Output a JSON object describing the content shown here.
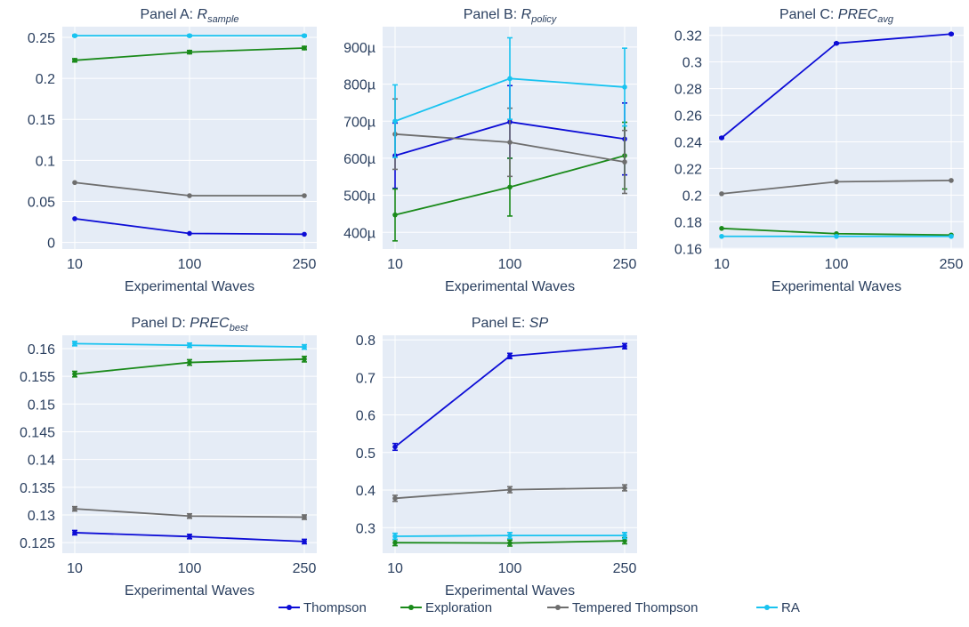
{
  "colors": {
    "plot_bg": "#e5ecf6",
    "grid": "#ffffff",
    "text": "#2a3f5f"
  },
  "legend": {
    "placement": "bottom-center",
    "items": [
      {
        "name": "Thompson",
        "color": "#0d0dd6"
      },
      {
        "name": "Exploration",
        "color": "#1a8a1a"
      },
      {
        "name": "Tempered Thompson",
        "color": "#6e6e6e"
      },
      {
        "name": "RA",
        "color": "#19c3f0"
      }
    ]
  },
  "chart_data": [
    {
      "id": "A",
      "type": "line",
      "title_prefix": "Panel A: ",
      "title_main": "R",
      "title_sub": "sample",
      "xlabel": "Experimental Waves",
      "categories": [
        "10",
        "100",
        "250"
      ],
      "ylim": [
        -0.008,
        0.263
      ],
      "yticks": [
        0,
        0.05,
        0.1,
        0.15,
        0.2,
        0.25
      ],
      "yticklabels": [
        "0",
        "0.05",
        "0.1",
        "0.15",
        "0.2",
        "0.25"
      ],
      "grid": true,
      "series": [
        {
          "name": "Thompson",
          "values": [
            0.029,
            0.011,
            0.01
          ],
          "err": [
            0,
            0,
            0
          ]
        },
        {
          "name": "Exploration",
          "values": [
            0.222,
            0.232,
            0.237
          ],
          "err": [
            0.002,
            0.002,
            0.002
          ]
        },
        {
          "name": "Tempered Thompson",
          "values": [
            0.073,
            0.057,
            0.057
          ],
          "err": [
            0,
            0,
            0
          ]
        },
        {
          "name": "RA",
          "values": [
            0.252,
            0.252,
            0.252
          ],
          "err": [
            0.001,
            0.001,
            0.001
          ]
        }
      ]
    },
    {
      "id": "B",
      "type": "line",
      "title_prefix": "Panel B: ",
      "title_main": "R",
      "title_sub": "policy",
      "xlabel": "Experimental Waves",
      "categories": [
        "10",
        "100",
        "250"
      ],
      "ylim": [
        0.000355,
        0.000955
      ],
      "yticks": [
        0.0004,
        0.0005,
        0.0006,
        0.0007,
        0.0008,
        0.0009
      ],
      "yticklabels": [
        "400µ",
        "500µ",
        "600µ",
        "700µ",
        "800µ",
        "900µ"
      ],
      "grid": true,
      "series": [
        {
          "name": "Thompson",
          "values": [
            0.000607,
            0.000698,
            0.000652
          ],
          "err": [
            8.8e-05,
            9.8e-05,
            9.7e-05
          ]
        },
        {
          "name": "Exploration",
          "values": [
            0.000447,
            0.000522,
            0.000607
          ],
          "err": [
            7e-05,
            7.8e-05,
            9e-05
          ]
        },
        {
          "name": "Tempered Thompson",
          "values": [
            0.000665,
            0.000643,
            0.00059
          ],
          "err": [
            9.5e-05,
            9.2e-05,
            8.5e-05
          ]
        },
        {
          "name": "RA",
          "values": [
            0.0007,
            0.000815,
            0.000792
          ],
          "err": [
            9.8e-05,
            0.00011,
            0.000105
          ]
        }
      ]
    },
    {
      "id": "C",
      "type": "line",
      "title_prefix": "Panel C: ",
      "title_main": "PREC",
      "title_sub": "avg",
      "xlabel": "Experimental Waves",
      "categories": [
        "10",
        "100",
        "250"
      ],
      "ylim": [
        0.1595,
        0.3265
      ],
      "yticks": [
        0.16,
        0.18,
        0.2,
        0.22,
        0.24,
        0.26,
        0.28,
        0.3,
        0.32
      ],
      "yticklabels": [
        "0.16",
        "0.18",
        "0.2",
        "0.22",
        "0.24",
        "0.26",
        "0.28",
        "0.3",
        "0.32"
      ],
      "grid": true,
      "series": [
        {
          "name": "Thompson",
          "values": [
            0.243,
            0.314,
            0.321
          ],
          "err": [
            0.0005,
            0.0005,
            0.0005
          ]
        },
        {
          "name": "Exploration",
          "values": [
            0.175,
            0.171,
            0.17
          ],
          "err": [
            0,
            0,
            0
          ]
        },
        {
          "name": "Tempered Thompson",
          "values": [
            0.201,
            0.21,
            0.211
          ],
          "err": [
            0,
            0,
            0
          ]
        },
        {
          "name": "RA",
          "values": [
            0.169,
            0.169,
            0.169
          ],
          "err": [
            0,
            0,
            0
          ]
        }
      ]
    },
    {
      "id": "D",
      "type": "line",
      "title_prefix": "Panel D: ",
      "title_main": "PREC",
      "title_sub": "best",
      "xlabel": "Experimental Waves",
      "categories": [
        "10",
        "100",
        "250"
      ],
      "ylim": [
        0.1231,
        0.1624
      ],
      "yticks": [
        0.125,
        0.13,
        0.135,
        0.14,
        0.145,
        0.15,
        0.155,
        0.16
      ],
      "yticklabels": [
        "0.125",
        "0.13",
        "0.135",
        "0.14",
        "0.145",
        "0.15",
        "0.155",
        "0.16"
      ],
      "grid": true,
      "series": [
        {
          "name": "Thompson",
          "values": [
            0.1268,
            0.1261,
            0.1252
          ],
          "err": [
            0.0004,
            0.0004,
            0.0004
          ]
        },
        {
          "name": "Exploration",
          "values": [
            0.1554,
            0.1575,
            0.1581
          ],
          "err": [
            0.0005,
            0.0005,
            0.0005
          ]
        },
        {
          "name": "Tempered Thompson",
          "values": [
            0.1311,
            0.1298,
            0.1296
          ],
          "err": [
            0.0004,
            0.0004,
            0.0004
          ]
        },
        {
          "name": "RA",
          "values": [
            0.1609,
            0.1606,
            0.1603
          ],
          "err": [
            0.0004,
            0.0004,
            0.0004
          ]
        }
      ]
    },
    {
      "id": "E",
      "type": "line",
      "title_prefix": "Panel E: ",
      "title_main": "SP",
      "title_sub": "",
      "xlabel": "Experimental Waves",
      "categories": [
        "10",
        "100",
        "250"
      ],
      "ylim": [
        0.232,
        0.812
      ],
      "yticks": [
        0.3,
        0.4,
        0.5,
        0.6,
        0.7,
        0.8
      ],
      "yticklabels": [
        "0.3",
        "0.4",
        "0.5",
        "0.6",
        "0.7",
        "0.8"
      ],
      "grid": true,
      "series": [
        {
          "name": "Thompson",
          "values": [
            0.515,
            0.757,
            0.783
          ],
          "err": [
            0.009,
            0.007,
            0.007
          ]
        },
        {
          "name": "Exploration",
          "values": [
            0.26,
            0.259,
            0.265
          ],
          "err": [
            0.008,
            0.008,
            0.008
          ]
        },
        {
          "name": "Tempered Thompson",
          "values": [
            0.378,
            0.401,
            0.406
          ],
          "err": [
            0.008,
            0.008,
            0.008
          ]
        },
        {
          "name": "RA",
          "values": [
            0.277,
            0.279,
            0.279
          ],
          "err": [
            0.008,
            0.008,
            0.008
          ]
        }
      ]
    }
  ]
}
